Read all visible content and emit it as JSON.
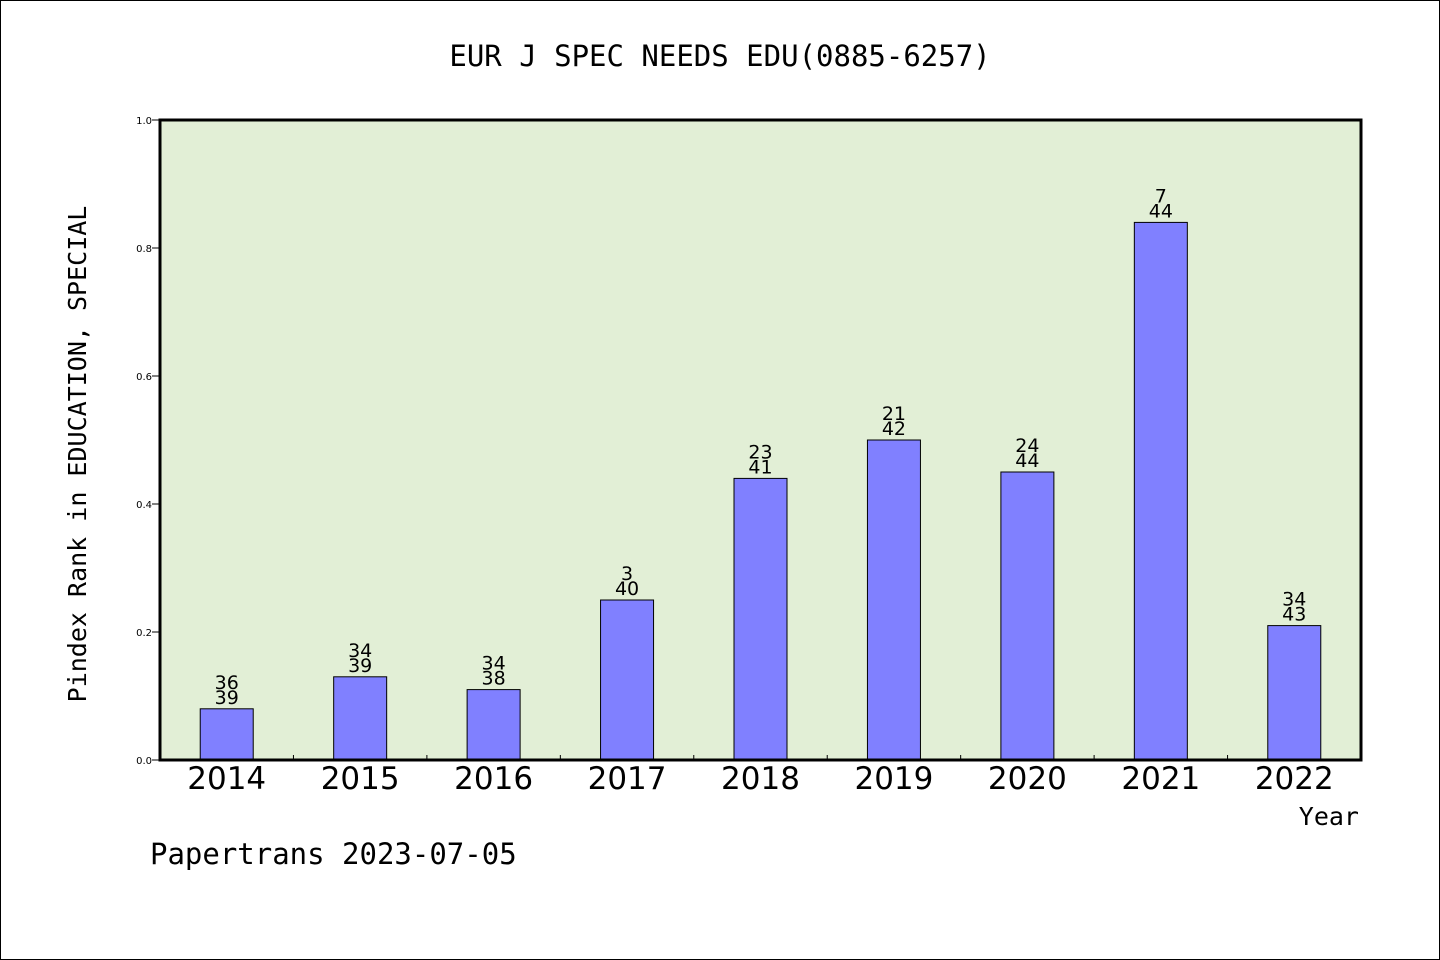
{
  "chart_data": {
    "type": "bar",
    "title": "EUR J SPEC NEEDS EDU(0885-6257)",
    "xlabel": "Year",
    "ylabel": "Pindex Rank in EDUCATION, SPECIAL",
    "footer": "Papertrans 2023-07-05",
    "categories": [
      "2014",
      "2015",
      "2016",
      "2017",
      "2018",
      "2019",
      "2020",
      "2021",
      "2022"
    ],
    "values": [
      0.08,
      0.13,
      0.11,
      0.25,
      0.44,
      0.5,
      0.45,
      0.84,
      0.21
    ],
    "label_top": [
      "36",
      "34",
      "34",
      "3",
      "23",
      "21",
      "24",
      "7",
      "34"
    ],
    "label_bottom": [
      "39",
      "39",
      "38",
      "40",
      "41",
      "42",
      "44",
      "44",
      "43"
    ],
    "ylim": [
      0,
      1.0
    ],
    "yticks": [
      "0.0",
      "0.2",
      "0.4",
      "0.6",
      "0.8",
      "1.0"
    ],
    "ytick_values": [
      0,
      0.2,
      0.4,
      0.6,
      0.8,
      1.0
    ],
    "grid": false,
    "legend": "none",
    "colors": {
      "plot_background": "#e2efd6",
      "bar_fill": "#8080ff",
      "bar_stroke": "#000000",
      "axis": "#000000"
    }
  }
}
